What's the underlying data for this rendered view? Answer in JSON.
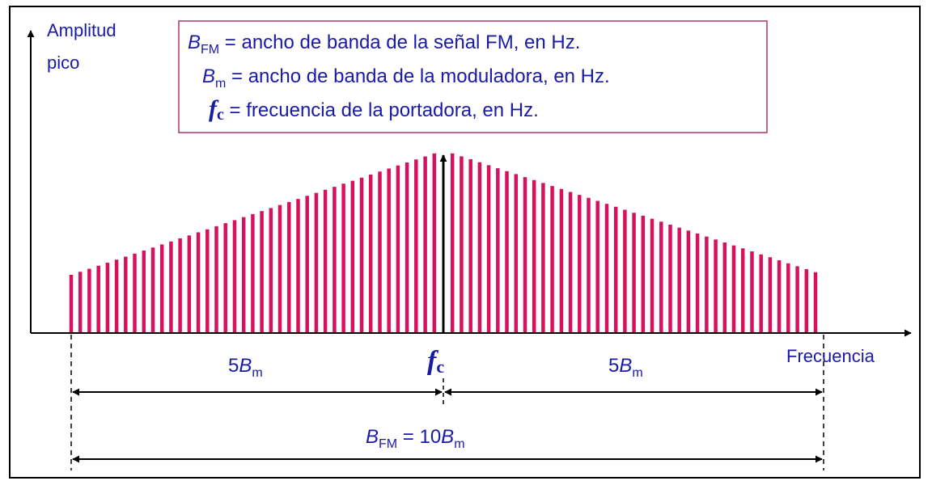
{
  "axis": {
    "y_label_line1": "Amplitud",
    "y_label_line2": "pico",
    "x_label": "Frecuencia"
  },
  "legend": {
    "bfm_symbol": "B",
    "bfm_sub": "FM",
    "bfm_text": " =  ancho de banda de la señal FM, en Hz.",
    "bm_symbol": "B",
    "bm_sub": "m",
    "bm_text": " =  ancho de banda de la moduladora, en Hz.",
    "fc_symbol": "f",
    "fc_sub": "c",
    "fc_text": " =  frecuencia de la portadora, en Hz."
  },
  "markers": {
    "fc_symbol": "f",
    "fc_sub": "c",
    "left_span_coef": "5",
    "left_span_symbol": "B",
    "left_span_sub": "m",
    "right_span_coef": "5",
    "right_span_symbol": "B",
    "right_span_sub": "m",
    "total_symbol": "B",
    "total_sub": "FM",
    "total_eq": " = 10",
    "total_symbol2": "B",
    "total_sub2": "m"
  },
  "colors": {
    "spectrum": "#d6125f",
    "text": "#1a1aa8",
    "legend_border": "#b0306a",
    "axis": "#000000"
  }
}
